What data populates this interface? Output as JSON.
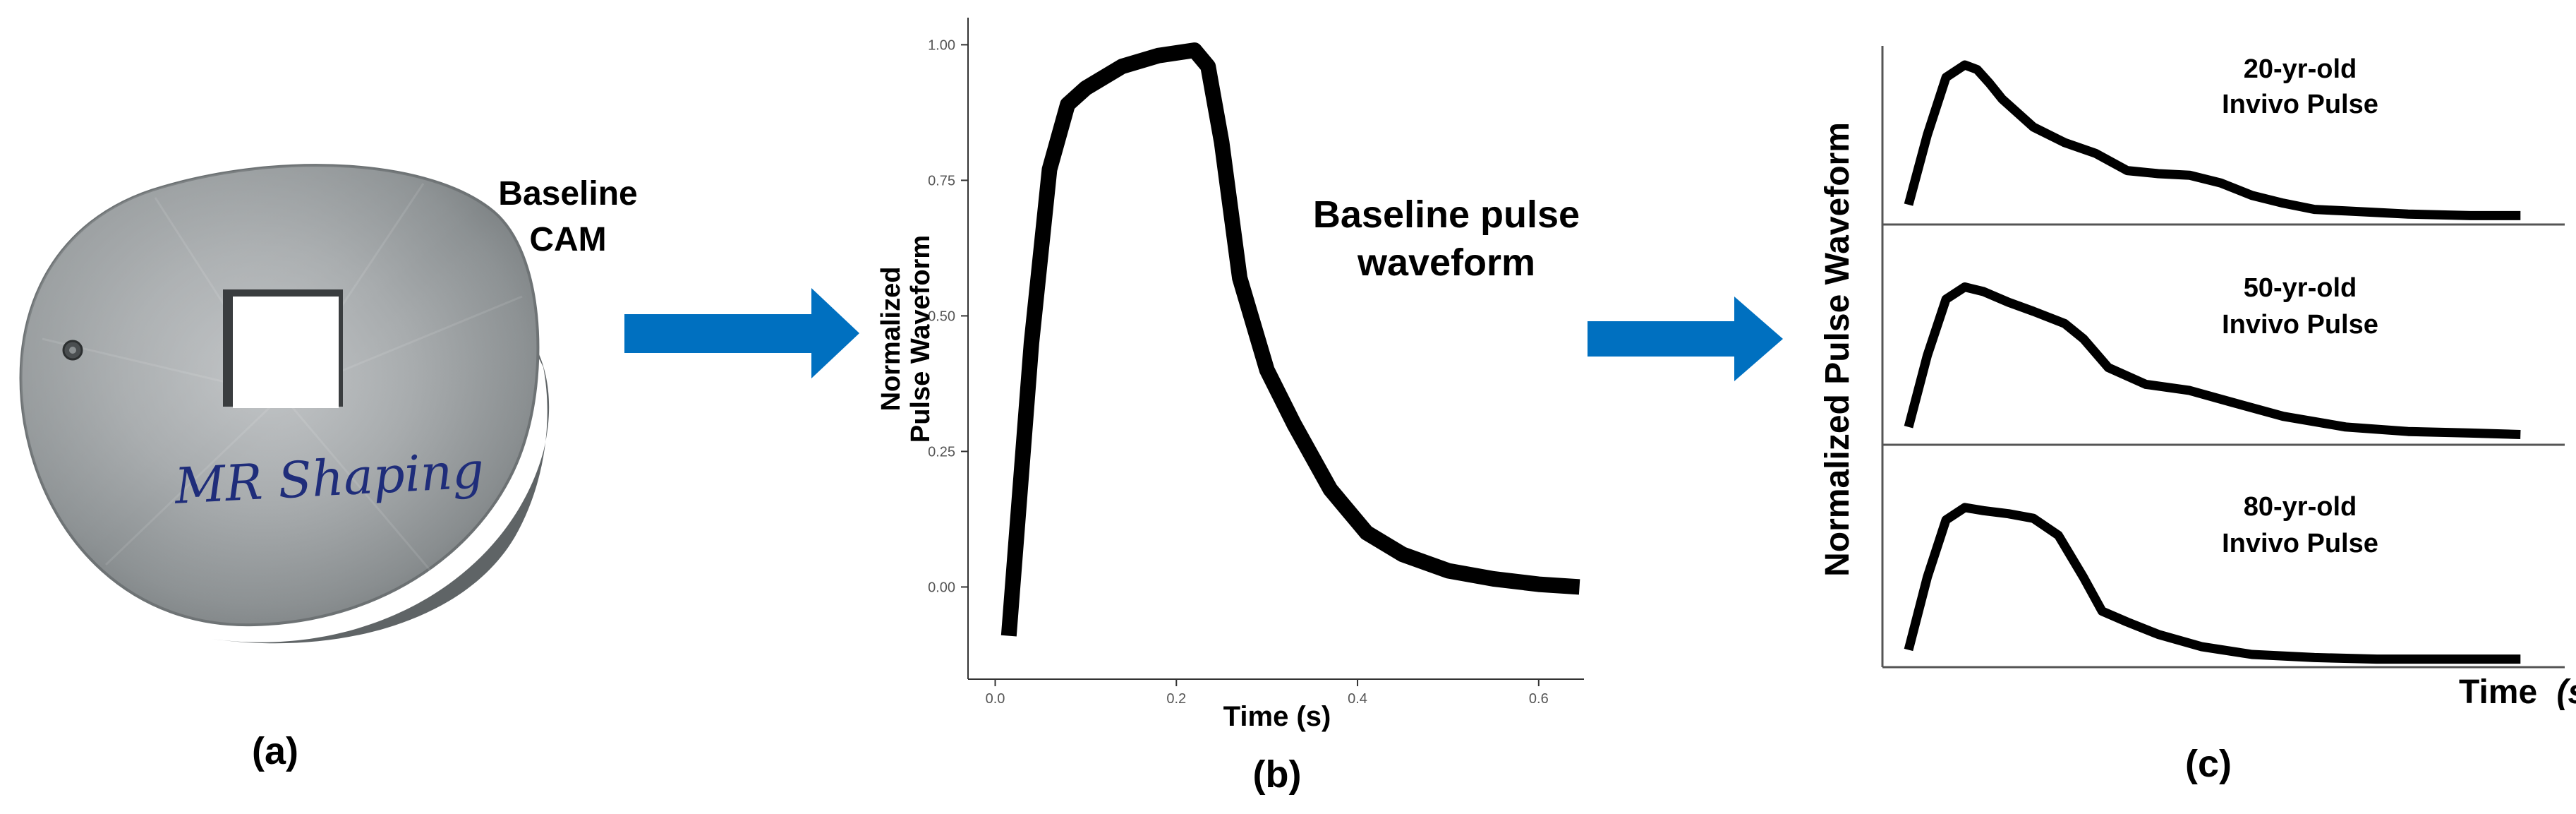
{
  "panel_a": {
    "object_label_line1": "Baseline",
    "object_label_line2": "CAM",
    "handwriting": "MR Shaping",
    "caption": "(a)"
  },
  "panel_b": {
    "caption": "(b)",
    "chart_title_line1": "Baseline pulse",
    "chart_title_line2": "waveform"
  },
  "panel_c": {
    "caption": "(c)",
    "ylabel": "Normalized Pulse Waveform",
    "xlabel_main": "Time",
    "xlabel_unit": "(s)"
  },
  "colors": {
    "arrow": "#0070C0",
    "curve": "#000000",
    "disc": "#9ea2a4"
  },
  "chart_data": [
    {
      "type": "line",
      "title": "Baseline pulse waveform",
      "xlabel": "Time (s)",
      "ylabel_line1": "Normalized",
      "ylabel_line2": "Pulse Waveform",
      "xlim": [
        -0.03,
        0.65
      ],
      "ylim": [
        -0.17,
        1.05
      ],
      "xticks": [
        0.0,
        0.2,
        0.4,
        0.6
      ],
      "xtick_labels": [
        "0.0",
        "0.2",
        "0.4",
        "0.6"
      ],
      "yticks": [
        0.0,
        0.25,
        0.5,
        0.75,
        1.0
      ],
      "ytick_labels": [
        "0.00",
        "0.25",
        "0.50",
        "0.75",
        "1.00"
      ],
      "series": [
        {
          "name": "Baseline",
          "x": [
            0.015,
            0.04,
            0.06,
            0.08,
            0.1,
            0.14,
            0.18,
            0.22,
            0.235,
            0.25,
            0.27,
            0.3,
            0.33,
            0.37,
            0.41,
            0.45,
            0.5,
            0.55,
            0.6,
            0.645
          ],
          "y": [
            -0.09,
            0.45,
            0.77,
            0.89,
            0.92,
            0.96,
            0.98,
            0.99,
            0.96,
            0.82,
            0.57,
            0.4,
            0.3,
            0.18,
            0.1,
            0.06,
            0.03,
            0.015,
            0.005,
            0.0
          ]
        }
      ]
    },
    {
      "type": "line",
      "title": "20-yr-old Invivo Pulse",
      "label_line1": "20-yr-old",
      "label_line2": "Invivo Pulse",
      "xlim": [
        0,
        1
      ],
      "ylim": [
        0,
        1.1
      ],
      "series": [
        {
          "name": "20-yr-old",
          "x": [
            0.0,
            0.03,
            0.06,
            0.09,
            0.11,
            0.13,
            0.15,
            0.2,
            0.25,
            0.3,
            0.35,
            0.4,
            0.45,
            0.5,
            0.55,
            0.6,
            0.65,
            0.7,
            0.8,
            0.9,
            0.98
          ],
          "y": [
            0.1,
            0.55,
            0.92,
            1.0,
            0.97,
            0.88,
            0.78,
            0.6,
            0.5,
            0.43,
            0.32,
            0.3,
            0.29,
            0.24,
            0.16,
            0.11,
            0.07,
            0.06,
            0.04,
            0.03,
            0.03
          ]
        }
      ]
    },
    {
      "type": "line",
      "title": "50-yr-old Invivo Pulse",
      "label_line1": "50-yr-old",
      "label_line2": "Invivo Pulse",
      "xlim": [
        0,
        1
      ],
      "ylim": [
        0,
        1.1
      ],
      "series": [
        {
          "name": "50-yr-old",
          "x": [
            0.0,
            0.03,
            0.06,
            0.09,
            0.12,
            0.16,
            0.2,
            0.25,
            0.28,
            0.32,
            0.38,
            0.45,
            0.52,
            0.6,
            0.7,
            0.8,
            0.9,
            0.98
          ],
          "y": [
            0.08,
            0.55,
            0.92,
            1.0,
            0.97,
            0.9,
            0.84,
            0.76,
            0.66,
            0.47,
            0.36,
            0.32,
            0.24,
            0.15,
            0.08,
            0.05,
            0.04,
            0.03
          ]
        }
      ]
    },
    {
      "type": "line",
      "title": "80-yr-old Invivo Pulse",
      "label_line1": "80-yr-old",
      "label_line2": "Invivo Pulse",
      "xlim": [
        0,
        1
      ],
      "ylim": [
        0,
        1.1
      ],
      "series": [
        {
          "name": "80-yr-old",
          "x": [
            0.0,
            0.03,
            0.06,
            0.09,
            0.12,
            0.16,
            0.2,
            0.24,
            0.28,
            0.31,
            0.35,
            0.4,
            0.47,
            0.55,
            0.65,
            0.75,
            0.85,
            0.98
          ],
          "y": [
            0.08,
            0.55,
            0.92,
            1.0,
            0.98,
            0.96,
            0.93,
            0.82,
            0.55,
            0.33,
            0.26,
            0.18,
            0.1,
            0.05,
            0.03,
            0.02,
            0.02,
            0.02
          ]
        }
      ]
    }
  ]
}
